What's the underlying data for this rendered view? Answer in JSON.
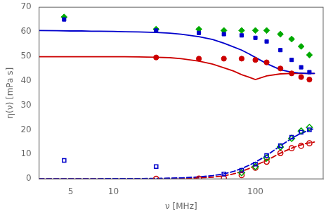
{
  "chart_data": {
    "type": "scatter",
    "xlabel": "ν [MHz]",
    "ylabel": "η(ν) [mPa s]",
    "log": "x",
    "grid": false,
    "xlim": [
      3,
      300
    ],
    "xticks": [
      5,
      10,
      100
    ],
    "ylim": [
      0,
      70
    ],
    "yticks": [
      0,
      10,
      20,
      30,
      40,
      50,
      60,
      70
    ],
    "series": [
      {
        "type": "line",
        "color": "#0000cc",
        "line_style": "solid",
        "x": [
          3,
          4,
          5,
          6,
          7,
          8,
          10,
          12,
          15,
          20,
          25,
          30,
          40,
          50,
          60,
          70,
          80,
          90,
          100,
          120,
          150,
          180,
          200,
          230,
          260
        ],
        "values": [
          60.5,
          60.4,
          60.3,
          60.3,
          60.2,
          60.2,
          60.1,
          60.0,
          59.9,
          59.7,
          59.4,
          59.0,
          58.0,
          56.8,
          55.3,
          53.8,
          52.5,
          51.0,
          49.5,
          47.0,
          44.5,
          43.5,
          43.2,
          43.0,
          43.0
        ]
      },
      {
        "type": "line",
        "color": "#cc0000",
        "line_style": "solid",
        "x": [
          3,
          4,
          5,
          6,
          7,
          8,
          10,
          12,
          15,
          20,
          25,
          30,
          40,
          50,
          60,
          70,
          80,
          90,
          100,
          120,
          150,
          180,
          200,
          230,
          260
        ],
        "values": [
          49.8,
          49.8,
          49.8,
          49.8,
          49.8,
          49.8,
          49.8,
          49.8,
          49.7,
          49.6,
          49.4,
          49.0,
          48.0,
          46.8,
          45.3,
          44.0,
          42.5,
          41.5,
          40.5,
          42.0,
          42.8,
          43.0,
          43.0,
          43.0,
          43.0
        ]
      },
      {
        "type": "line",
        "color": "#0000cc",
        "line_style": "dashed",
        "x": [
          3,
          4,
          5,
          6,
          7,
          8,
          10,
          15,
          20,
          30,
          40,
          50,
          60,
          70,
          80,
          90,
          100,
          120,
          150,
          180,
          200,
          230,
          260
        ],
        "values": [
          0.02,
          0.02,
          0.03,
          0.03,
          0.04,
          0.05,
          0.06,
          0.1,
          0.15,
          0.4,
          0.8,
          1.3,
          2.0,
          3.0,
          4.2,
          5.5,
          6.8,
          9.5,
          13.5,
          16.5,
          18.0,
          19.5,
          20.5
        ]
      },
      {
        "type": "line",
        "color": "#cc0000",
        "line_style": "dashed",
        "x": [
          3,
          4,
          5,
          6,
          7,
          8,
          10,
          15,
          20,
          30,
          40,
          50,
          60,
          70,
          80,
          90,
          100,
          120,
          150,
          180,
          200,
          230,
          260
        ],
        "values": [
          0.01,
          0.01,
          0.01,
          0.02,
          0.02,
          0.02,
          0.03,
          0.05,
          0.08,
          0.2,
          0.4,
          0.7,
          1.2,
          2.0,
          3.0,
          4.2,
          5.5,
          7.5,
          10.5,
          12.5,
          13.5,
          14.5,
          15.0
        ]
      },
      {
        "type": "scatter",
        "color": "#0000cc",
        "marker": "square",
        "x": [
          4.5,
          20,
          40,
          60,
          80,
          100,
          120,
          150,
          180,
          210,
          240
        ],
        "values": [
          65.0,
          60.5,
          59.5,
          59.0,
          58.5,
          57.5,
          56.0,
          52.5,
          48.5,
          45.5,
          43.5
        ]
      },
      {
        "type": "scatter",
        "color": "#00aa00",
        "marker": "diamond",
        "x": [
          4.5,
          20,
          40,
          60,
          80,
          100,
          120,
          150,
          180,
          210,
          240
        ],
        "values": [
          66.0,
          61.0,
          61.0,
          60.5,
          60.5,
          60.5,
          60.5,
          59.0,
          57.0,
          54.0,
          50.5
        ]
      },
      {
        "type": "scatter",
        "color": "#cc0000",
        "marker": "circle",
        "x": [
          20,
          40,
          60,
          80,
          100,
          120,
          150,
          180,
          210,
          240
        ],
        "values": [
          49.5,
          49.0,
          49.0,
          49.0,
          48.5,
          47.5,
          45.0,
          43.0,
          41.5,
          40.5
        ]
      },
      {
        "type": "scatter",
        "color": "#0000cc",
        "marker": "square-open",
        "x": [
          4.5,
          20,
          60,
          80,
          100,
          120,
          150,
          180,
          210,
          240
        ],
        "values": [
          7.5,
          5.0,
          2.0,
          3.5,
          6.0,
          9.5,
          13.5,
          17.0,
          19.0,
          20.0
        ]
      },
      {
        "type": "scatter",
        "color": "#00aa00",
        "marker": "diamond-open",
        "x": [
          80,
          100,
          120,
          150,
          180,
          210,
          240
        ],
        "values": [
          2.5,
          5.0,
          8.5,
          13.0,
          16.5,
          19.5,
          21.0
        ]
      },
      {
        "type": "scatter",
        "color": "#cc0000",
        "marker": "circle-open",
        "x": [
          20,
          40,
          60,
          80,
          100,
          120,
          150,
          180,
          210,
          240
        ],
        "values": [
          0.05,
          0.1,
          0.3,
          1.5,
          4.5,
          7.0,
          10.5,
          12.5,
          13.5,
          14.5
        ]
      }
    ]
  }
}
